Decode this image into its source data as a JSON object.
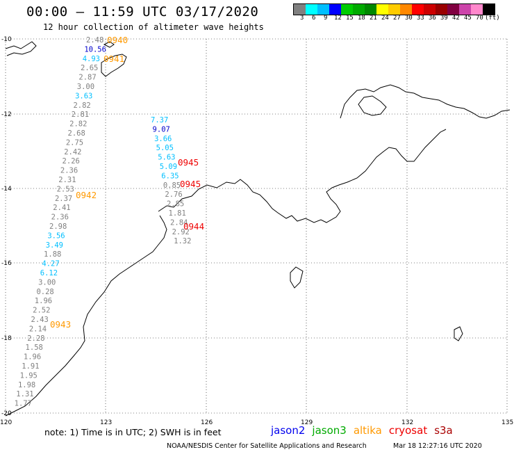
{
  "header": {
    "title": "00:00 – 11:59 UTC 03/17/2020",
    "subtitle": "12 hour collection of altimeter wave heights"
  },
  "legend": {
    "colors": [
      "#808080",
      "#00ffff",
      "#00bfff",
      "#0000ff",
      "#00cc00",
      "#00aa00",
      "#008800",
      "#ffff00",
      "#ffcc00",
      "#ff8800",
      "#ff0000",
      "#cc0000",
      "#990000",
      "#800040",
      "#cc44aa",
      "#ff88cc",
      "#000000"
    ],
    "labels": [
      "3",
      "6",
      "9",
      "12",
      "15",
      "18",
      "21",
      "24",
      "27",
      "30",
      "33",
      "36",
      "39",
      "42",
      "45",
      "70",
      "(ft)"
    ]
  },
  "axes": {
    "lat_labels": [
      "-10",
      "-12",
      "-14",
      "-16",
      "-18",
      "-20"
    ],
    "lon_labels": [
      "120",
      "123",
      "126",
      "129",
      "132",
      "135"
    ]
  },
  "tracks": [
    {
      "id": "left",
      "points": [
        {
          "v": "2.48",
          "c": "#808080"
        },
        {
          "v": "10.56",
          "c": "#0000cc"
        },
        {
          "v": "4.93",
          "c": "#00bfff"
        },
        {
          "v": "2.65",
          "c": "#808080"
        },
        {
          "v": "2.87",
          "c": "#808080"
        },
        {
          "v": "3.00",
          "c": "#808080"
        },
        {
          "v": "3.63",
          "c": "#00bfff"
        },
        {
          "v": "2.82",
          "c": "#808080"
        },
        {
          "v": "2.81",
          "c": "#808080"
        },
        {
          "v": "2.82",
          "c": "#808080"
        },
        {
          "v": "2.68",
          "c": "#808080"
        },
        {
          "v": "2.75",
          "c": "#808080"
        },
        {
          "v": "2.42",
          "c": "#808080"
        },
        {
          "v": "2.26",
          "c": "#808080"
        },
        {
          "v": "2.36",
          "c": "#808080"
        },
        {
          "v": "2.31",
          "c": "#808080"
        },
        {
          "v": "2.53",
          "c": "#808080"
        },
        {
          "v": "2.37",
          "c": "#808080"
        },
        {
          "v": "2.41",
          "c": "#808080"
        },
        {
          "v": "2.36",
          "c": "#808080"
        },
        {
          "v": "2.98",
          "c": "#808080"
        },
        {
          "v": "3.56",
          "c": "#00bfff"
        },
        {
          "v": "3.49",
          "c": "#00bfff"
        },
        {
          "v": "1.88",
          "c": "#808080"
        },
        {
          "v": "4.27",
          "c": "#00bfff"
        },
        {
          "v": "6.12",
          "c": "#00bfff"
        },
        {
          "v": "3.00",
          "c": "#808080"
        },
        {
          "v": "0.28",
          "c": "#808080"
        },
        {
          "v": "1.96",
          "c": "#808080"
        },
        {
          "v": "2.52",
          "c": "#808080"
        },
        {
          "v": "2.43",
          "c": "#808080"
        },
        {
          "v": "2.14",
          "c": "#808080"
        },
        {
          "v": "2.28",
          "c": "#808080"
        },
        {
          "v": "1.58",
          "c": "#808080"
        },
        {
          "v": "1.96",
          "c": "#808080"
        },
        {
          "v": "1.91",
          "c": "#808080"
        },
        {
          "v": "1.95",
          "c": "#808080"
        },
        {
          "v": "1.98",
          "c": "#808080"
        },
        {
          "v": "1.31",
          "c": "#808080"
        },
        {
          "v": "1.77",
          "c": "#808080"
        }
      ]
    },
    {
      "id": "right",
      "points": [
        {
          "v": "7.37",
          "c": "#00bfff"
        },
        {
          "v": "9.07",
          "c": "#0000cc"
        },
        {
          "v": "3.66",
          "c": "#00bfff"
        },
        {
          "v": "5.05",
          "c": "#00bfff"
        },
        {
          "v": "5.63",
          "c": "#00bfff"
        },
        {
          "v": "5.09",
          "c": "#00bfff"
        },
        {
          "v": "6.35",
          "c": "#00bfff"
        },
        {
          "v": "0.85",
          "c": "#808080"
        },
        {
          "v": "2.76",
          "c": "#808080"
        },
        {
          "v": "2.85",
          "c": "#808080"
        },
        {
          "v": "1.81",
          "c": "#808080"
        },
        {
          "v": "2.84",
          "c": "#808080"
        },
        {
          "v": "2.92",
          "c": "#808080"
        },
        {
          "v": "1.32",
          "c": "#808080"
        }
      ]
    }
  ],
  "pass_times": [
    {
      "t": "0940",
      "c": "#ff9900"
    },
    {
      "t": "0941",
      "c": "#ff9900"
    },
    {
      "t": "0942",
      "c": "#ff9900"
    },
    {
      "t": "0943",
      "c": "#ff9900"
    },
    {
      "t": "0945",
      "c": "#ee0000"
    },
    {
      "t": "0945",
      "c": "#ee0000"
    },
    {
      "t": "0944",
      "c": "#ee0000"
    }
  ],
  "footer": {
    "note": "note: 1) Time is in UTC; 2) SWH is in feet",
    "satellites": [
      {
        "name": "jason2",
        "color": "#0000ee"
      },
      {
        "name": "jason3",
        "color": "#00aa00"
      },
      {
        "name": "altika",
        "color": "#ff9900"
      },
      {
        "name": "cryosat",
        "color": "#ee0000"
      },
      {
        "name": "s3a",
        "color": "#aa0000"
      }
    ],
    "credit": "NOAA/NESDIS Center for Satellite Applications and Research",
    "timestamp": "Mar 18 12:27:16 UTC 2020"
  }
}
